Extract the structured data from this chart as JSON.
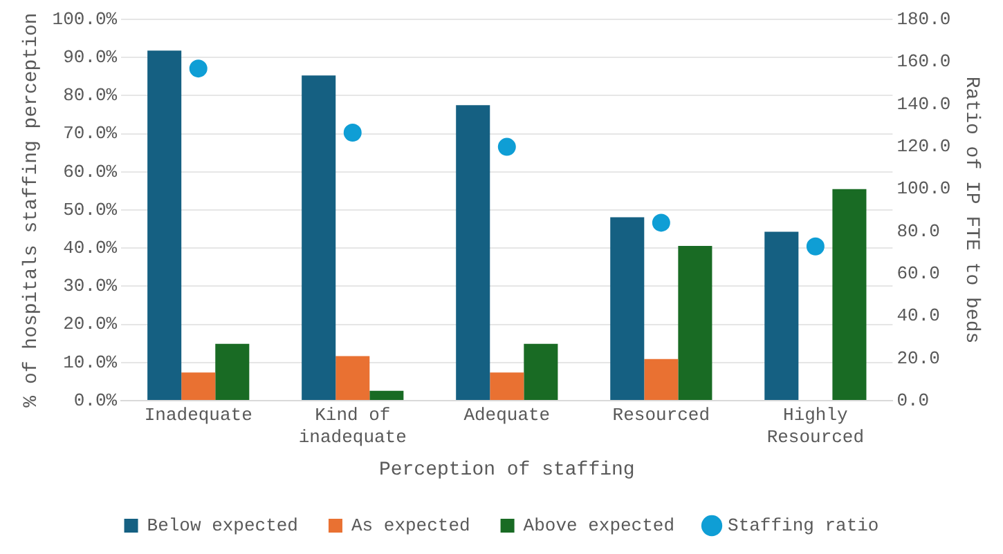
{
  "chart_data": {
    "type": "bar",
    "xlabel": "Perception of staffing",
    "ylabel": "% of hospitals staffing perception",
    "y2label": "Ratio of IP FTE to beds",
    "categories": [
      "Inadequate",
      "Kind of inadequate",
      "Adequate",
      "Resourced",
      "Highly Resourced"
    ],
    "series": [
      {
        "name": "Below expected",
        "color": "#156082",
        "values": [
          91.8,
          85.3,
          77.5,
          48.1,
          44.3
        ]
      },
      {
        "name": "As expected",
        "color": "#e97132",
        "values": [
          7.4,
          11.7,
          7.4,
          10.9,
          null
        ]
      },
      {
        "name": "Above expected",
        "color": "#196b24",
        "values": [
          14.9,
          2.6,
          14.9,
          40.6,
          55.5
        ]
      },
      {
        "name": "Staffing ratio",
        "type": "scatter",
        "axis": "y2",
        "color": "#0f9ed5",
        "x": [
          "Inadequate",
          "Kind of inadequate",
          "Adequate",
          "Resourced",
          "Highly Resourced"
        ],
        "values": [
          156.8,
          126.5,
          119.8,
          84,
          72.8
        ]
      }
    ],
    "ylim": [
      0,
      100
    ],
    "yticks": [
      {
        "value": 0,
        "label": "0.0%"
      },
      {
        "value": 10,
        "label": "10.0%"
      },
      {
        "value": 20,
        "label": "20.0%"
      },
      {
        "value": 30,
        "label": "30.0%"
      },
      {
        "value": 40,
        "label": "40.0%"
      },
      {
        "value": 50,
        "label": "50.0%"
      },
      {
        "value": 60,
        "label": "60.0%"
      },
      {
        "value": 70,
        "label": "70.0%"
      },
      {
        "value": 80,
        "label": "80.0%"
      },
      {
        "value": 90,
        "label": "90.0%"
      },
      {
        "value": 100,
        "label": "100.0%"
      }
    ],
    "y2lim": [
      0,
      180
    ],
    "y2ticks": [
      {
        "value": 0,
        "label": "0.0"
      },
      {
        "value": 20,
        "label": "20.0"
      },
      {
        "value": 40,
        "label": "40.0"
      },
      {
        "value": 60,
        "label": "60.0"
      },
      {
        "value": 80,
        "label": "80.0"
      },
      {
        "value": 100,
        "label": "100.0"
      },
      {
        "value": 120,
        "label": "120.0"
      },
      {
        "value": 140,
        "label": "140.0"
      },
      {
        "value": 160,
        "label": "160.0"
      },
      {
        "value": 180,
        "label": "180.0"
      }
    ],
    "grid": "y",
    "legend": "bottom",
    "marker": "circle"
  }
}
